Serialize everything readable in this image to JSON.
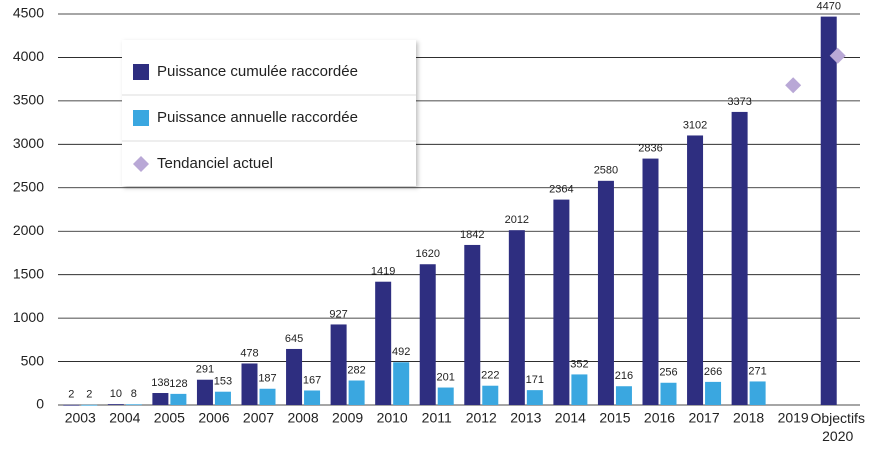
{
  "chart_data": {
    "type": "bar",
    "categories": [
      "2003",
      "2004",
      "2005",
      "2006",
      "2007",
      "2008",
      "2009",
      "2010",
      "2011",
      "2012",
      "2013",
      "2014",
      "2015",
      "2016",
      "2017",
      "2018",
      "2019",
      "Objectifs 2020"
    ],
    "series": [
      {
        "name": "Puissance cumulée raccordée",
        "color": "#2e2e80",
        "values": [
          2,
          10,
          138,
          291,
          478,
          645,
          927,
          1419,
          1620,
          1842,
          2012,
          2364,
          2580,
          2836,
          3102,
          3373,
          null,
          4470
        ]
      },
      {
        "name": "Puissance annuelle raccordée",
        "color": "#3aa7e0",
        "values": [
          2,
          8,
          128,
          153,
          187,
          167,
          282,
          492,
          201,
          222,
          171,
          352,
          216,
          256,
          266,
          271,
          null,
          null
        ]
      },
      {
        "name": "Tendanciel actuel",
        "color": "#b9a8d6",
        "marker": "diamond",
        "values": [
          null,
          null,
          null,
          null,
          null,
          null,
          null,
          null,
          null,
          null,
          null,
          null,
          null,
          null,
          null,
          null,
          3680,
          4020
        ]
      }
    ],
    "ylim": [
      0,
      4500
    ],
    "yticks": [
      0,
      500,
      1000,
      1500,
      2000,
      2500,
      3000,
      3500,
      4000,
      4500
    ],
    "grid": true,
    "legend": "top-left"
  }
}
